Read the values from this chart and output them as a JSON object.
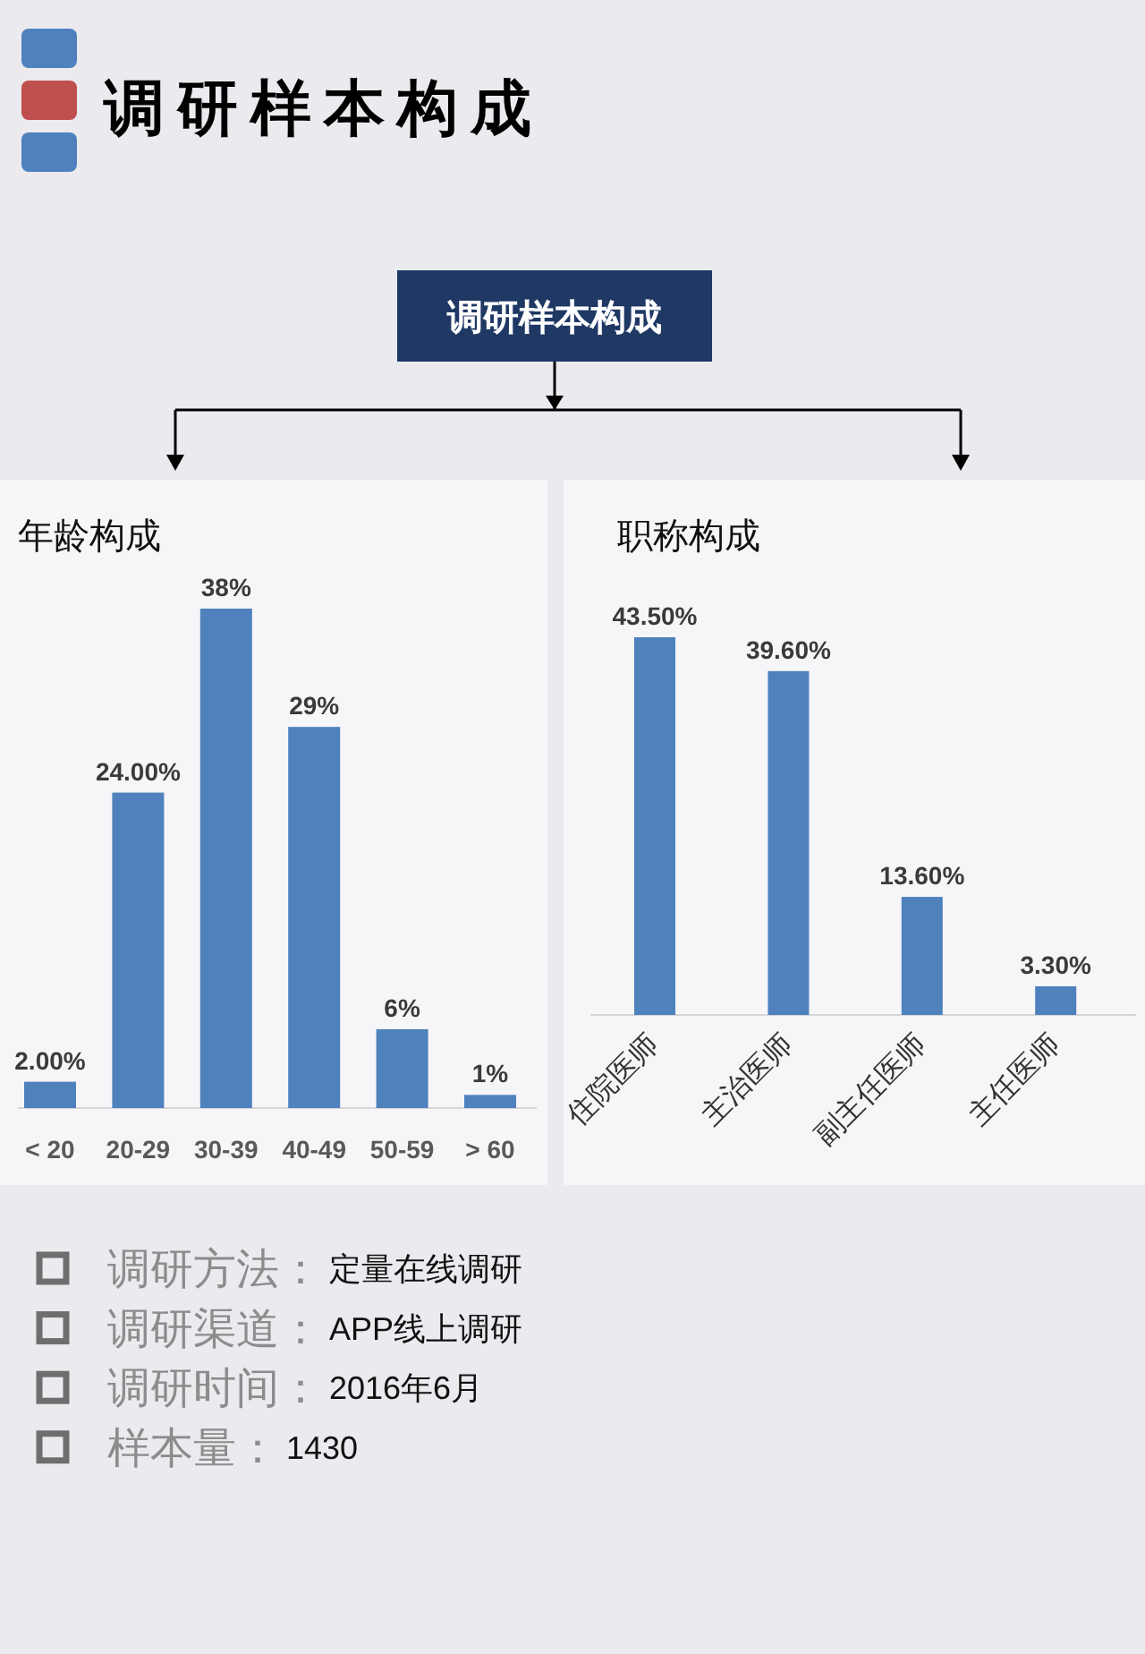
{
  "chart_data": [
    {
      "type": "other",
      "title": "调研样本构成",
      "annotations": [
        "调研样本构成"
      ]
    },
    {
      "type": "bar",
      "title": "年龄构成",
      "categories": [
        "< 20",
        "20-29",
        "30-39",
        "40-49",
        "50-59",
        "> 60"
      ],
      "values": [
        2,
        24,
        38,
        29,
        6,
        1
      ],
      "value_labels": [
        "2.00%",
        "24.00%",
        "38%",
        "29%",
        "6%",
        "1%"
      ],
      "color": "#4f81bd"
    },
    {
      "type": "bar",
      "title": "职称构成",
      "categories": [
        "住院医师",
        "主治医师",
        "副主任医师",
        "主任医师"
      ],
      "values": [
        43.5,
        39.6,
        13.6,
        3.3
      ],
      "value_labels": [
        "43.50%",
        "39.60%",
        "13.60%",
        "3.30%"
      ],
      "color": "#4f81bd"
    },
    {
      "type": "other",
      "annotations": [
        "调研方法：",
        "定量在线调研",
        "调研渠道：",
        "APP线上调研",
        "调研时间：",
        "2016年6月",
        "样本量：",
        "1430"
      ]
    }
  ]
}
